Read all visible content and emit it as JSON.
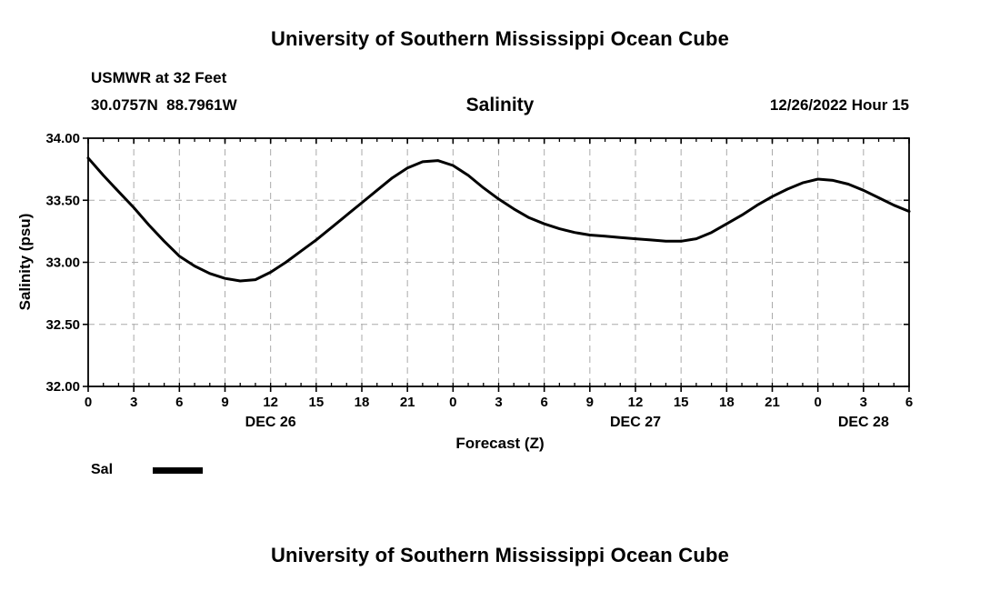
{
  "header": {
    "title": "University of Southern Mississippi Ocean Cube",
    "station": "USMWR at 32 Feet",
    "coords": "30.0757N  88.7961W",
    "chart_title": "Salinity",
    "datetime": "12/26/2022 Hour 15"
  },
  "footer": {
    "title": "University of Southern Mississippi Ocean Cube"
  },
  "legend": {
    "label": "Sal",
    "color": "#000000"
  },
  "chart_data": {
    "type": "line",
    "title": "Salinity",
    "xlabel": "Forecast (Z)",
    "ylabel": "Salinity (psu)",
    "xlim": [
      0,
      54
    ],
    "ylim": [
      32.0,
      34.0
    ],
    "grid": true,
    "grid_color": "#aaaaaa",
    "line_color": "#000000",
    "y_ticks": [
      32.0,
      32.5,
      33.0,
      33.5,
      34.0
    ],
    "y_tick_labels": [
      "32.00",
      "32.50",
      "33.00",
      "33.50",
      "34.00"
    ],
    "x_ticks": [
      0,
      3,
      6,
      9,
      12,
      15,
      18,
      21,
      24,
      27,
      30,
      33,
      36,
      39,
      42,
      45,
      48,
      51,
      54
    ],
    "x_tick_labels": [
      "0",
      "3",
      "6",
      "9",
      "12",
      "15",
      "18",
      "21",
      "0",
      "3",
      "6",
      "9",
      "12",
      "15",
      "18",
      "21",
      "0",
      "3",
      "6"
    ],
    "date_labels": [
      {
        "label": "DEC 26",
        "x": 12
      },
      {
        "label": "DEC 27",
        "x": 36
      },
      {
        "label": "DEC 28",
        "x": 51
      }
    ],
    "legend_position": "bottom-left",
    "series": [
      {
        "name": "Sal",
        "x": [
          0,
          1,
          2,
          3,
          4,
          5,
          6,
          7,
          8,
          9,
          10,
          11,
          12,
          13,
          14,
          15,
          16,
          17,
          18,
          19,
          20,
          21,
          22,
          23,
          24,
          25,
          26,
          27,
          28,
          29,
          30,
          31,
          32,
          33,
          34,
          35,
          36,
          37,
          38,
          39,
          40,
          41,
          42,
          43,
          44,
          45,
          46,
          47,
          48,
          49,
          50,
          51,
          52,
          53,
          54
        ],
        "y": [
          33.84,
          33.7,
          33.57,
          33.44,
          33.3,
          33.17,
          33.05,
          32.97,
          32.91,
          32.87,
          32.85,
          32.86,
          32.92,
          33.0,
          33.09,
          33.18,
          33.28,
          33.38,
          33.48,
          33.58,
          33.68,
          33.76,
          33.81,
          33.82,
          33.78,
          33.7,
          33.6,
          33.51,
          33.43,
          33.36,
          33.31,
          33.27,
          33.24,
          33.22,
          33.21,
          33.2,
          33.19,
          33.18,
          33.17,
          33.17,
          33.19,
          33.24,
          33.31,
          33.38,
          33.46,
          33.53,
          33.59,
          33.64,
          33.67,
          33.66,
          33.63,
          33.58,
          33.52,
          33.46,
          33.41
        ]
      }
    ]
  }
}
